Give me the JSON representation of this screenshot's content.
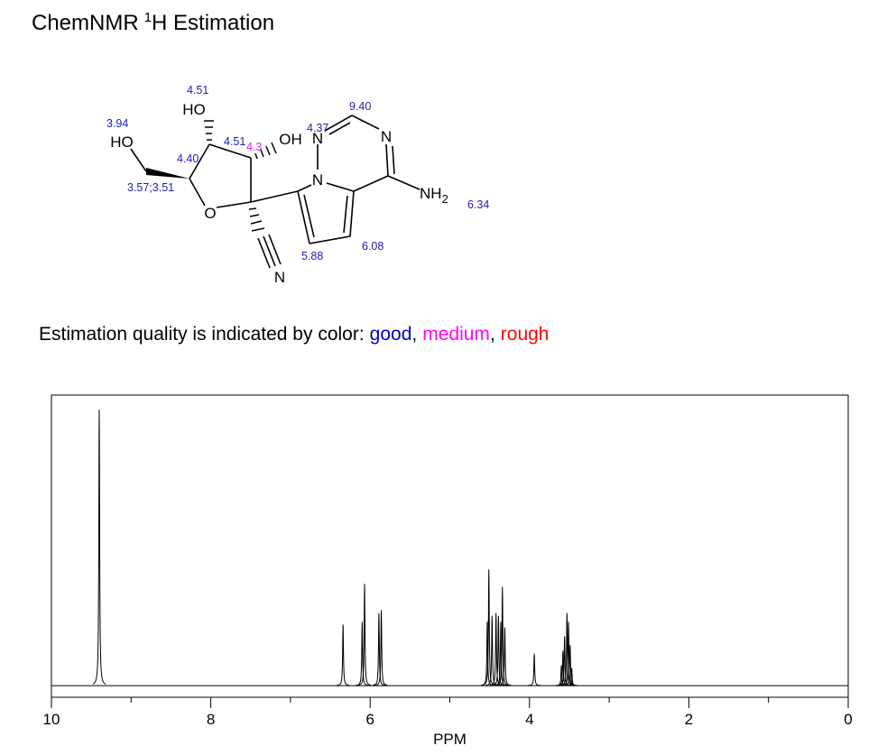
{
  "header": {
    "title": {
      "prefix": "ChemNMR",
      "superscript": "1",
      "suffix": "H Estimation"
    }
  },
  "structure": {
    "atoms": [
      "HO",
      "HO",
      "OH",
      "O",
      "N",
      "N",
      "N",
      "N",
      {
        "text": "NH",
        "subscript": "2"
      }
    ],
    "shifts": [
      {
        "label": "4.51",
        "color": "#2020b0"
      },
      {
        "label": "3.94",
        "color": "#2020b0"
      },
      {
        "label": "4.51",
        "color": "#2020b0"
      },
      {
        "label": "4.3",
        "color": "#e020e0"
      },
      {
        "label": "4.37",
        "color": "#2020b0"
      },
      {
        "label": "9.40",
        "color": "#2020b0"
      },
      {
        "label": "4.40",
        "color": "#2020b0"
      },
      {
        "label": "3.57;3.51",
        "color": "#2020b0"
      },
      {
        "label": "6.34",
        "color": "#2020b0"
      },
      {
        "label": "5.88",
        "color": "#2020b0"
      },
      {
        "label": "6.08",
        "color": "#2020b0"
      }
    ]
  },
  "quality": {
    "text": "Estimation quality is indicated by color:",
    "separator": ",",
    "levels": [
      {
        "label": "good",
        "color": "#0000cc"
      },
      {
        "label": "medium",
        "color": "#ff00ff"
      },
      {
        "label": "rough",
        "color": "#ff0000"
      }
    ]
  },
  "chart_data": {
    "type": "spectrum",
    "x_label": "PPM",
    "xlim": [
      10,
      0
    ],
    "xticks": [
      10,
      8,
      6,
      4,
      2,
      0
    ],
    "minor_xticks": [
      9,
      7,
      5,
      3,
      1
    ],
    "ylim": [
      -4,
      100
    ],
    "color": "#000000",
    "x": [
      9.4,
      6.34,
      6.1,
      6.07,
      5.89,
      5.86,
      4.53,
      4.51,
      4.47,
      4.42,
      4.39,
      4.36,
      4.34,
      4.31,
      3.94,
      3.6,
      3.58,
      3.56,
      3.53,
      3.51,
      3.49,
      3.47
    ],
    "values": [
      95,
      21,
      22,
      35,
      25,
      26,
      22,
      40,
      24,
      25,
      24,
      22,
      34,
      20,
      11,
      7,
      12,
      17,
      25,
      22,
      14,
      6
    ]
  }
}
